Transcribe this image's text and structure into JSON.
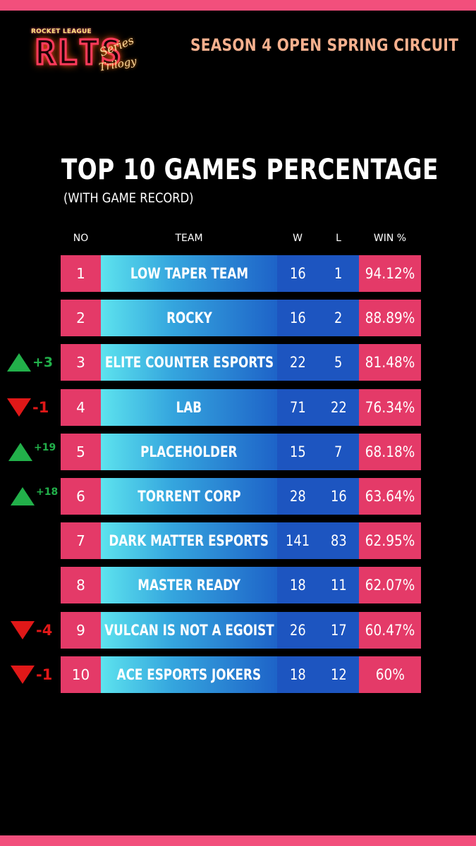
{
  "colors": {
    "accent_pink": "#f24f7c",
    "cell_pink": "#e43a68",
    "cell_blue": "#1d55c0",
    "team_gradient_start": "#5de3ee",
    "up_green": "#22b04a",
    "down_red": "#e01818",
    "season_text": "#f5b08e"
  },
  "logo": {
    "top_text": "ROCKET LEAGUE",
    "main_text": "RLTS",
    "script_1": "Series",
    "script_2": "Trilogy"
  },
  "season_title": "SEASON 4 OPEN SPRING CIRCUIT",
  "title": "TOP 10 GAMES PERCENTAGE",
  "subtitle": "(WITH GAME RECORD)",
  "headers": {
    "no": "NO",
    "team": "TEAM",
    "w": "W",
    "l": "L",
    "pct": "WIN %"
  },
  "rows": [
    {
      "no": "1",
      "team": "LOW TAPER TEAM",
      "w": "16",
      "l": "1",
      "pct": "94.12%",
      "trend": null
    },
    {
      "no": "2",
      "team": "ROCKY",
      "w": "16",
      "l": "2",
      "pct": "88.89%",
      "trend": null
    },
    {
      "no": "3",
      "team": "ELITE COUNTER ESPORTS",
      "w": "22",
      "l": "5",
      "pct": "81.48%",
      "trend": {
        "dir": "up",
        "icon": "up-triangle-icon",
        "text": "+3"
      }
    },
    {
      "no": "4",
      "team": "LAB",
      "w": "71",
      "l": "22",
      "pct": "76.34%",
      "trend": {
        "dir": "down",
        "icon": "down-triangle-icon",
        "text": "-1"
      }
    },
    {
      "no": "5",
      "team": "PLACEHOLDER",
      "w": "15",
      "l": "7",
      "pct": "68.18%",
      "trend": {
        "dir": "up",
        "icon": "up-triangle-icon",
        "text": "+19"
      }
    },
    {
      "no": "6",
      "team": "TORRENT CORP",
      "w": "28",
      "l": "16",
      "pct": "63.64%",
      "trend": {
        "dir": "up",
        "icon": "up-triangle-icon",
        "text": "+18"
      }
    },
    {
      "no": "7",
      "team": "DARK MATTER ESPORTS",
      "w": "141",
      "l": "83",
      "pct": "62.95%",
      "trend": null
    },
    {
      "no": "8",
      "team": "MASTER READY",
      "w": "18",
      "l": "11",
      "pct": "62.07%",
      "trend": null
    },
    {
      "no": "9",
      "team": "VULCAN IS NOT A EGOIST",
      "w": "26",
      "l": "17",
      "pct": "60.47%",
      "trend": {
        "dir": "down",
        "icon": "down-triangle-icon",
        "text": "-4"
      }
    },
    {
      "no": "10",
      "team": "ACE ESPORTS JOKERS",
      "w": "18",
      "l": "12",
      "pct": "60%",
      "trend": {
        "dir": "down",
        "icon": "down-triangle-icon",
        "text": "-1"
      }
    }
  ]
}
